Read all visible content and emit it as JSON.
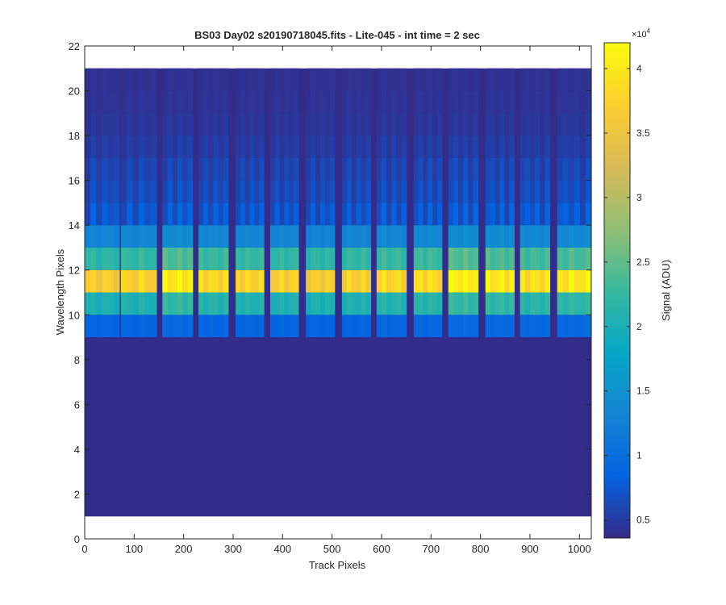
{
  "chart_data": {
    "type": "heatmap",
    "title": "BS03 Day02  s20190718045.fits - Lite-045 - int time = 2 sec",
    "xlabel": "Track Pixels",
    "ylabel": "Wavelength Pixels",
    "xlim": [
      0,
      1024
    ],
    "ylim": [
      0,
      22
    ],
    "x_ticks": [
      0,
      100,
      200,
      300,
      400,
      500,
      600,
      700,
      800,
      900,
      1000
    ],
    "y_ticks": [
      0,
      2,
      4,
      6,
      8,
      10,
      12,
      14,
      16,
      18,
      20,
      22
    ],
    "image_extent": {
      "x": [
        0,
        1024
      ],
      "y": [
        1,
        21
      ]
    },
    "background_signal": 3800,
    "track_bands": [
      {
        "x": [
          0,
          70
        ],
        "peak": 36500
      },
      {
        "x": [
          73,
          145
        ],
        "peak": 37000
      },
      {
        "x": [
          157,
          218
        ],
        "peak": 40500
      },
      {
        "x": [
          230,
          290
        ],
        "peak": 38000
      },
      {
        "x": [
          305,
          362
        ],
        "peak": 37500
      },
      {
        "x": [
          375,
          432
        ],
        "peak": 37000
      },
      {
        "x": [
          447,
          505
        ],
        "peak": 36500
      },
      {
        "x": [
          520,
          578
        ],
        "peak": 37000
      },
      {
        "x": [
          590,
          650
        ],
        "peak": 38000
      },
      {
        "x": [
          665,
          722
        ],
        "peak": 38500
      },
      {
        "x": [
          735,
          795
        ],
        "peak": 41000
      },
      {
        "x": [
          810,
          868
        ],
        "peak": 40000
      },
      {
        "x": [
          880,
          940
        ],
        "peak": 39000
      },
      {
        "x": [
          955,
          1024
        ],
        "peak": 40000
      }
    ],
    "row_profile": [
      {
        "row": 9,
        "fraction": 0.15
      },
      {
        "row": 10,
        "fraction": 0.5
      },
      {
        "row": 11,
        "fraction": 1.0
      },
      {
        "row": 12,
        "fraction": 0.55
      },
      {
        "row": 13,
        "fraction": 0.28
      },
      {
        "row": 14,
        "fraction": 0.14
      },
      {
        "row": 15,
        "fraction": 0.1
      },
      {
        "row": 16,
        "fraction": 0.08
      },
      {
        "row": 17,
        "fraction": 0.05
      },
      {
        "row": 18,
        "fraction": 0.03
      },
      {
        "row": 19,
        "fraction": 0.02
      },
      {
        "row": 20,
        "fraction": 0.015
      }
    ],
    "colorbar": {
      "label": "Signal (ADU)",
      "multiplier": "×10",
      "exponent": "4",
      "range": [
        3600,
        42000
      ],
      "ticks": [
        {
          "value": 5000,
          "label": "0.5"
        },
        {
          "value": 10000,
          "label": "1"
        },
        {
          "value": 15000,
          "label": "1.5"
        },
        {
          "value": 20000,
          "label": "2"
        },
        {
          "value": 25000,
          "label": "2.5"
        },
        {
          "value": 30000,
          "label": "3"
        },
        {
          "value": 35000,
          "label": "3.5"
        },
        {
          "value": 40000,
          "label": "4"
        }
      ],
      "colormap": "parula",
      "colors": [
        "#352a87",
        "#0363e1",
        "#1485d4",
        "#06a7c6",
        "#38b99e",
        "#92bf73",
        "#d9ba56",
        "#fcce2e",
        "#f9fb0e"
      ]
    },
    "grid": false,
    "legend": "none"
  }
}
